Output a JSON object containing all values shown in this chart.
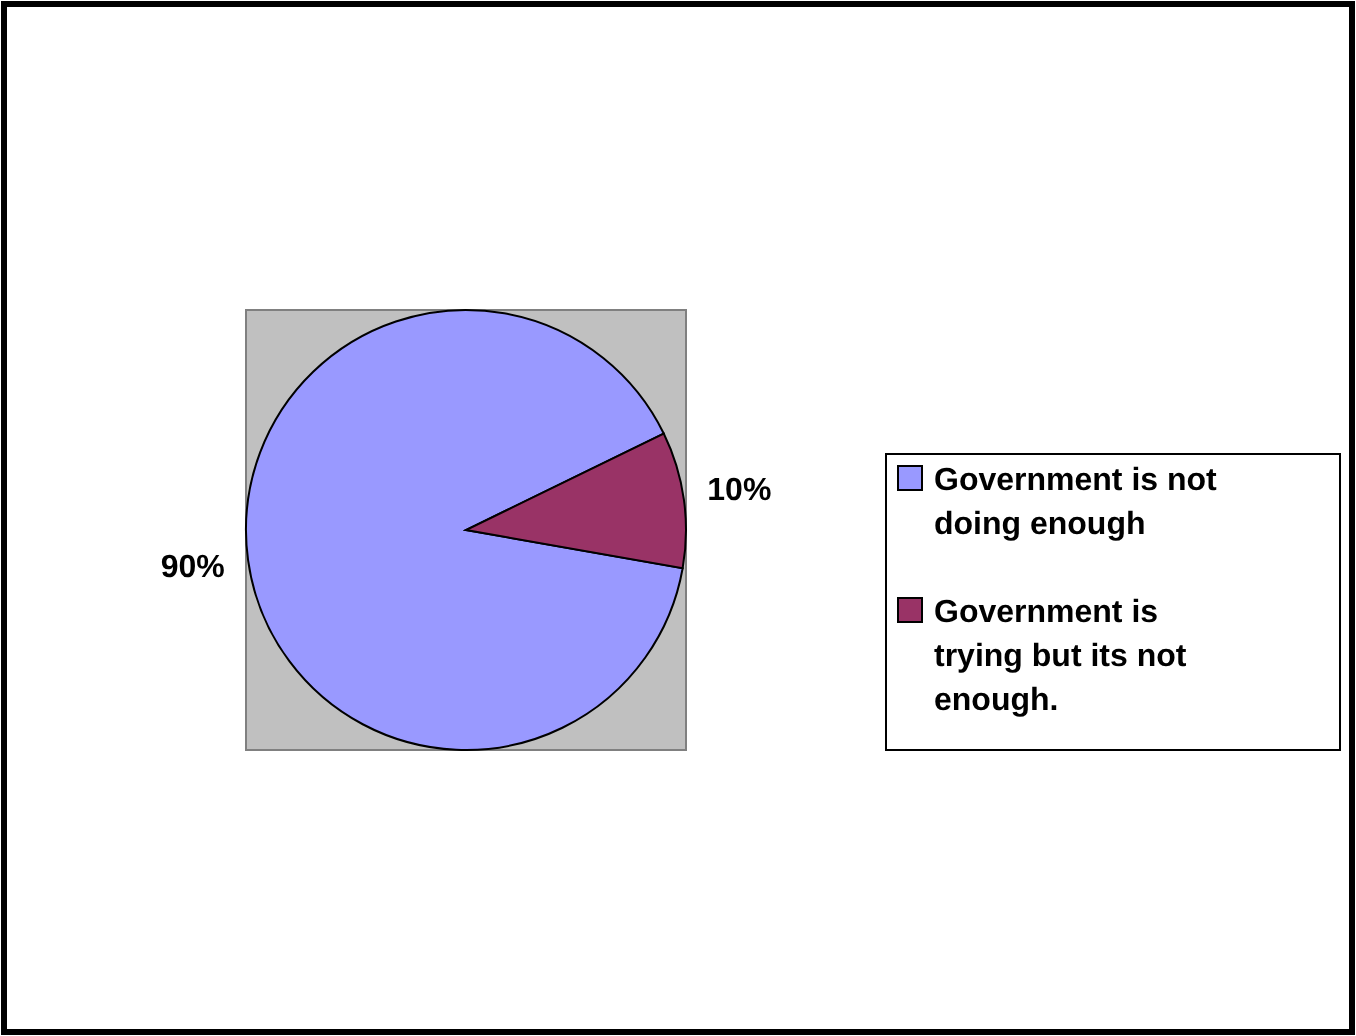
{
  "chart_data": {
    "type": "pie",
    "categories": [
      "Government is not doing enough",
      "Government is trying but its not enough."
    ],
    "values": [
      90,
      10
    ],
    "colors": [
      "#9999ff",
      "#993366"
    ],
    "value_labels": [
      "90%",
      "10%"
    ],
    "legend": "right"
  }
}
